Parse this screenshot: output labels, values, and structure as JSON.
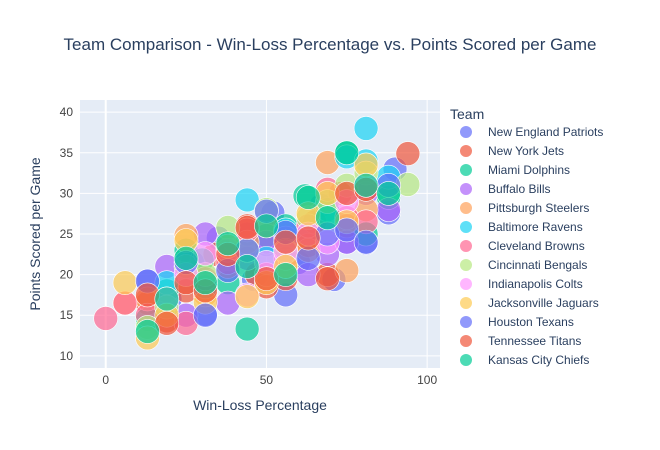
{
  "chart_data": {
    "type": "scatter",
    "title": "Team Comparison - Win-Loss Percentage vs. Points Scored per Game",
    "xlabel": "Win-Loss Percentage",
    "ylabel": "Points Scored per Game",
    "xlim": [
      -8,
      104
    ],
    "ylim": [
      8.5,
      41.5
    ],
    "xticks": [
      0,
      50,
      100
    ],
    "yticks": [
      10,
      15,
      20,
      25,
      30,
      35,
      40
    ],
    "grid": true,
    "legend": {
      "title": "Team",
      "placement": "right"
    },
    "series": [
      {
        "name": "New England Patriots",
        "color": "#636efa",
        "points": [
          [
            13,
            19.2
          ],
          [
            20,
            17
          ],
          [
            27,
            21.5
          ],
          [
            31,
            15.1
          ],
          [
            35,
            24.5
          ],
          [
            38,
            22.3
          ],
          [
            44,
            25
          ],
          [
            46,
            19.4
          ],
          [
            50,
            23.7
          ],
          [
            52,
            27.6
          ],
          [
            56,
            17.5
          ],
          [
            60,
            21.5
          ],
          [
            63,
            25
          ],
          [
            67,
            28.5
          ],
          [
            71,
            19.4
          ],
          [
            75,
            24
          ],
          [
            81,
            23.9
          ],
          [
            88,
            27.6
          ],
          [
            90,
            33
          ]
        ]
      },
      {
        "name": "New York Jets",
        "color": "#EF553B",
        "points": [
          [
            13,
            16.5
          ],
          [
            19,
            14.3
          ],
          [
            25,
            18
          ],
          [
            31,
            18.1
          ],
          [
            34,
            22.5
          ],
          [
            44,
            26
          ],
          [
            47,
            20
          ],
          [
            50,
            18.5
          ],
          [
            56,
            19.5
          ],
          [
            63,
            23.6
          ],
          [
            65,
            26.5
          ],
          [
            69,
            20
          ],
          [
            73,
            30
          ],
          [
            75,
            26
          ],
          [
            81,
            30.5
          ],
          [
            94,
            34.9
          ]
        ]
      },
      {
        "name": "Miami Dolphins",
        "color": "#00cc96",
        "points": [
          [
            13,
            14.5
          ],
          [
            19,
            18
          ],
          [
            25,
            23
          ],
          [
            30,
            21.8
          ],
          [
            38,
            19
          ],
          [
            44,
            13.3
          ],
          [
            50,
            24.8
          ],
          [
            56,
            26
          ],
          [
            62,
            29.7
          ],
          [
            69,
            28
          ],
          [
            75,
            35
          ],
          [
            81,
            25
          ],
          [
            88,
            29.5
          ]
        ]
      },
      {
        "name": "Buffalo Bills",
        "color": "#ab63fa",
        "points": [
          [
            19,
            21
          ],
          [
            25,
            15
          ],
          [
            31,
            25
          ],
          [
            38,
            16.5
          ],
          [
            44,
            22
          ],
          [
            50,
            24
          ],
          [
            56,
            24.5
          ],
          [
            63,
            20
          ],
          [
            69,
            22.5
          ],
          [
            75,
            24
          ],
          [
            81,
            30
          ],
          [
            88,
            28
          ]
        ]
      },
      {
        "name": "Pittsburgh Steelers",
        "color": "#FFA15A",
        "points": [
          [
            6,
            16.5
          ],
          [
            13,
            17
          ],
          [
            25,
            24.8
          ],
          [
            31,
            17.5
          ],
          [
            38,
            21
          ],
          [
            44,
            24
          ],
          [
            50,
            26
          ],
          [
            56,
            21
          ],
          [
            63,
            23
          ],
          [
            69,
            33.8
          ],
          [
            75,
            20.5
          ],
          [
            81,
            28
          ]
        ]
      },
      {
        "name": "Baltimore Ravens",
        "color": "#19d3f3",
        "points": [
          [
            19,
            19
          ],
          [
            31,
            18.5
          ],
          [
            44,
            29.2
          ],
          [
            50,
            22
          ],
          [
            56,
            25.5
          ],
          [
            69,
            27
          ],
          [
            75,
            34.5
          ],
          [
            81,
            38
          ],
          [
            88,
            32
          ],
          [
            81,
            34
          ]
        ]
      },
      {
        "name": "Cleveland Browns",
        "color": "#FF6692",
        "points": [
          [
            0,
            14.6
          ],
          [
            6,
            16.5
          ],
          [
            13,
            15
          ],
          [
            25,
            14
          ],
          [
            31,
            19.5
          ],
          [
            38,
            21.5
          ],
          [
            44,
            25.5
          ],
          [
            50,
            20
          ],
          [
            56,
            22
          ],
          [
            63,
            26
          ],
          [
            69,
            30.5
          ],
          [
            75,
            27
          ],
          [
            81,
            26.5
          ]
        ]
      },
      {
        "name": "Cincinnati Bengals",
        "color": "#B6E880",
        "points": [
          [
            13,
            13.5
          ],
          [
            19,
            16
          ],
          [
            25,
            21
          ],
          [
            31,
            20
          ],
          [
            38,
            25.8
          ],
          [
            44,
            23
          ],
          [
            50,
            28
          ],
          [
            56,
            23
          ],
          [
            63,
            27
          ],
          [
            69,
            29
          ],
          [
            75,
            31
          ],
          [
            81,
            32.5
          ],
          [
            94,
            31.1
          ]
        ]
      },
      {
        "name": "Indianapolis Colts",
        "color": "#FF97FF",
        "points": [
          [
            19,
            17
          ],
          [
            25,
            20
          ],
          [
            31,
            22.6
          ],
          [
            38,
            23
          ],
          [
            44,
            17.5
          ],
          [
            50,
            21.5
          ],
          [
            56,
            22.8
          ],
          [
            63,
            25
          ],
          [
            69,
            24
          ],
          [
            75,
            29
          ],
          [
            81,
            31
          ]
        ]
      },
      {
        "name": "Jacksonville Jaguars",
        "color": "#FECB52",
        "points": [
          [
            6,
            19
          ],
          [
            13,
            12.2
          ],
          [
            19,
            15
          ],
          [
            25,
            24.2
          ],
          [
            31,
            16.6
          ],
          [
            38,
            23.5
          ],
          [
            44,
            17.3
          ],
          [
            50,
            19
          ],
          [
            56,
            21
          ],
          [
            63,
            27.5
          ],
          [
            69,
            30
          ],
          [
            75,
            26.5
          ],
          [
            81,
            33.5
          ]
        ]
      },
      {
        "name": "Houston Texans",
        "color": "#636efa",
        "points": [
          [
            13,
            19.2
          ],
          [
            25,
            21.5
          ],
          [
            31,
            15
          ],
          [
            38,
            20.5
          ],
          [
            44,
            23
          ],
          [
            50,
            27.8
          ],
          [
            56,
            25.2
          ],
          [
            63,
            22
          ],
          [
            69,
            25
          ],
          [
            75,
            25.5
          ],
          [
            81,
            24
          ],
          [
            88,
            31
          ]
        ]
      },
      {
        "name": "Tennessee Titans",
        "color": "#EF553B",
        "points": [
          [
            13,
            17.5
          ],
          [
            19,
            14
          ],
          [
            25,
            19
          ],
          [
            31,
            18
          ],
          [
            38,
            22.5
          ],
          [
            44,
            25.8
          ],
          [
            50,
            19.5
          ],
          [
            56,
            24
          ],
          [
            63,
            24.5
          ],
          [
            69,
            19.5
          ],
          [
            75,
            30
          ],
          [
            81,
            30.5
          ]
        ]
      },
      {
        "name": "Kansas City Chiefs",
        "color": "#00cc96",
        "points": [
          [
            13,
            13
          ],
          [
            19,
            17
          ],
          [
            25,
            22
          ],
          [
            31,
            19
          ],
          [
            38,
            23.8
          ],
          [
            44,
            21
          ],
          [
            50,
            26
          ],
          [
            56,
            20
          ],
          [
            63,
            29.5
          ],
          [
            69,
            27
          ],
          [
            75,
            35
          ],
          [
            81,
            31
          ],
          [
            88,
            30
          ]
        ]
      }
    ]
  }
}
